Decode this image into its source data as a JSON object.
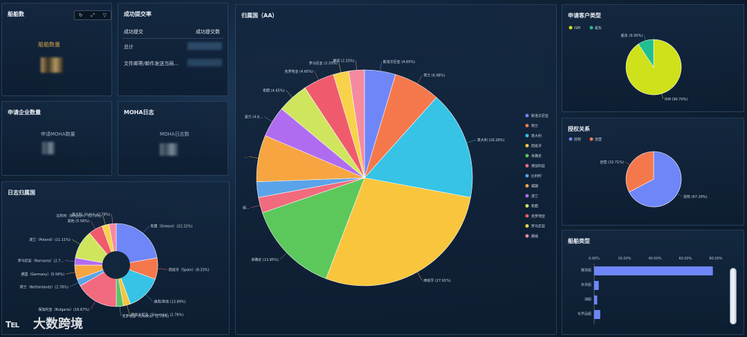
{
  "panels": {
    "ship_count": {
      "title": "船舶数",
      "label": "船舶数量"
    },
    "success_rate": {
      "title": "成功提交率",
      "col1": "成功提交",
      "col2": "成功提交数",
      "rows": [
        "总计",
        "文件邮寄/邮件发送当局..."
      ]
    },
    "applicant": {
      "title": "申请企业数量",
      "label": "申请MOHA数量"
    },
    "moha_log": {
      "title": "MOHA日志",
      "label": "MOHA日志数"
    },
    "log_dist": {
      "title": "日志归属国"
    },
    "country_aa": {
      "title": "归属国（AA）"
    },
    "client_type": {
      "title": "申请客户类型"
    },
    "auth": {
      "title": "授权关系"
    },
    "ship_type": {
      "title": "船舶类型"
    }
  },
  "toolbar": {
    "icons": [
      "refresh-icon",
      "expand-icon",
      "filter-icon"
    ],
    "glyphs": [
      "↻",
      "⤢",
      "▽"
    ]
  },
  "watermark": {
    "text": "大数跨境"
  },
  "chart_data": [
    {
      "id": "log_dist",
      "type": "pie",
      "donut": true,
      "slices": [
        {
          "name": "希腊（Greece）",
          "value": 22.22,
          "label": "希腊（Greece）(22.22%)",
          "color": "#6e86f8"
        },
        {
          "name": "西班牙（Spain）",
          "value": 8.33,
          "label": "西班牙（Spain）(8.33%)",
          "color": "#f5784c"
        },
        {
          "name": "通用/其他",
          "value": 13.89,
          "label": "通用/其他 (13.89%)",
          "color": "#36c3e6"
        },
        {
          "name": "斯洛文尼亚（Slovenia）",
          "value": 2.78,
          "label": "斯洛文尼亚（Slovenia）(2.78%)",
          "color": "#f4c542"
        },
        {
          "name": "克罗地亚（Croatia）",
          "value": 2.78,
          "label": "克罗地亚（Croatia）(2.78%)",
          "color": "#5bc26a"
        },
        {
          "name": "保加利亚（Bulgaria）",
          "value": 16.67,
          "label": "保加利亚（Bulgaria）(16.67%)",
          "color": "#f26a7e"
        },
        {
          "name": "荷兰（Netherlands）",
          "value": 2.78,
          "label": "荷兰（Netherlands）(2.78%)",
          "color": "#5aa3e8"
        },
        {
          "name": "德国（Germany）",
          "value": 5.56,
          "label": "德国（Germany）(5.56%)",
          "color": "#f7a541"
        },
        {
          "name": "罗马尼亚（Romania）",
          "value": 2.78,
          "label": "罗马尼亚（Romania）(2.7...",
          "color": "#b06cf0"
        },
        {
          "name": "波兰（Poland）",
          "value": 11.11,
          "label": "波兰（Poland）(11.11%)",
          "color": "#cfe55e"
        },
        {
          "name": "其他",
          "value": 5.56,
          "label": "其他 (5.56%)",
          "color": "#ef5b6c"
        },
        {
          "name": "比利时（Belgium）",
          "value": 2.78,
          "label": "比利时（Belgium）(2.78%)",
          "color": "#f7d24a"
        },
        {
          "name": "意大利（Italy）",
          "value": 2.78,
          "label": "意大利（Italy）(2.78%)",
          "color": "#f48aa0"
        }
      ]
    },
    {
      "id": "country_aa",
      "type": "pie",
      "slices": [
        {
          "name": "斯洛文尼亚",
          "value": 4.65,
          "label": "斯洛文尼亚 (4.65%)",
          "color": "#6e86f8"
        },
        {
          "name": "荷兰",
          "value": 6.98,
          "label": "荷兰 (6.98%)",
          "color": "#f5784c"
        },
        {
          "name": "意大利",
          "value": 16.28,
          "label": "意大利 (16.28%)",
          "color": "#36c3e6"
        },
        {
          "name": "西班牙",
          "value": 27.91,
          "label": "西班牙 (27.91%)",
          "color": "#f9c53c"
        },
        {
          "name": "未确定",
          "value": 13.95,
          "label": "未确定 (13.95%)",
          "color": "#5cc85c"
        },
        {
          "name": "保加利亚",
          "value": 2.33,
          "label": "保...",
          "color": "#f26a7e"
        },
        {
          "name": "比利时",
          "value": 2.33,
          "label": "",
          "color": "#5aa3e8"
        },
        {
          "name": "德国",
          "value": 6.98,
          "label": "...",
          "color": "#f7a541"
        },
        {
          "name": "波兰",
          "value": 4.65,
          "label": "波兰 (4.6...",
          "color": "#b06cf0"
        },
        {
          "name": "希腊",
          "value": 4.65,
          "label": "希腊 (4.65%)",
          "color": "#cfe55e"
        },
        {
          "name": "克罗地亚",
          "value": 4.65,
          "label": "克罗地亚 (4.65%)",
          "color": "#ef5b6c"
        },
        {
          "name": "罗马尼亚",
          "value": 2.33,
          "label": "罗马尼亚 (2.33%)",
          "color": "#f7d24a"
        },
        {
          "name": "挪威",
          "value": 2.33,
          "label": "挪威 (2.33%)",
          "color": "#f48aa0"
        }
      ],
      "legend": [
        "斯洛文尼亚",
        "荷兰",
        "意大利",
        "西班牙",
        "未确定",
        "保加利亚",
        "比利时",
        "德国",
        "波兰",
        "希腊",
        "克罗地亚",
        "罗马尼亚",
        "挪威"
      ],
      "legend_colors": [
        "#6e86f8",
        "#f5784c",
        "#36c3e6",
        "#f9c53c",
        "#5cc85c",
        "#f26a7e",
        "#5aa3e8",
        "#f7a541",
        "#b06cf0",
        "#cfe55e",
        "#ef5b6c",
        "#f7d24a",
        "#f48aa0"
      ]
    },
    {
      "id": "client_type",
      "type": "pie",
      "legend": [
        "ISM",
        "船东"
      ],
      "slices": [
        {
          "name": "ISM",
          "value": 90.7,
          "label": "ISM (90.70%)",
          "color": "#cfe11a"
        },
        {
          "name": "船东",
          "value": 9.3,
          "label": "船东 (9.30%)",
          "color": "#1fbf8f"
        }
      ]
    },
    {
      "id": "auth",
      "type": "pie",
      "legend": [
        "授权",
        "自营"
      ],
      "slices": [
        {
          "name": "授权",
          "value": 67.29,
          "label": "授权 (67.29%)",
          "color": "#6e86f8"
        },
        {
          "name": "自营",
          "value": 32.71,
          "label": "自营 (32.71%)",
          "color": "#f5784c"
        }
      ]
    },
    {
      "id": "ship_type",
      "type": "bar",
      "orientation": "horizontal",
      "categories": [
        "散货船",
        "杂货船",
        "油船",
        "化学品船"
      ],
      "values": [
        78,
        3,
        2,
        4
      ],
      "x_ticks": [
        "0.00%",
        "20.00%",
        "40.00%",
        "60.00%",
        "80.00%"
      ],
      "xlim": [
        0,
        80
      ],
      "color": "#6e86f8"
    }
  ]
}
